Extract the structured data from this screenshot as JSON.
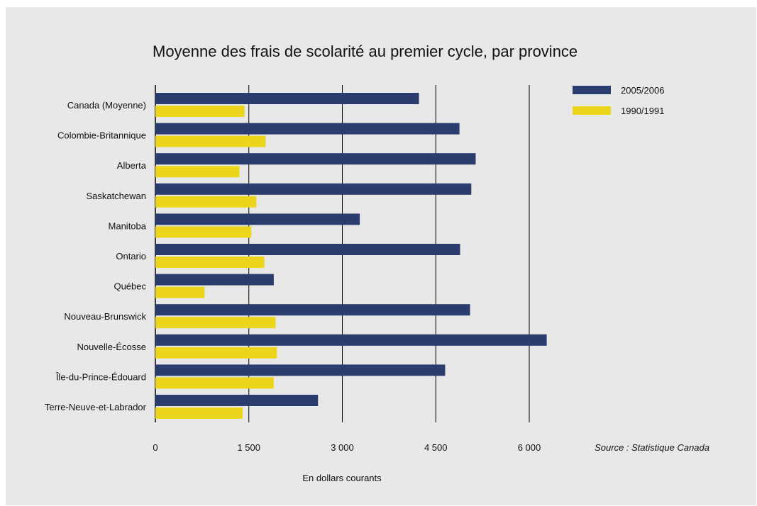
{
  "chart_data": {
    "type": "bar",
    "orientation": "horizontal",
    "title": "Moyenne des frais de scolarité au premier cycle, par province",
    "xlabel": "En dollars courants",
    "ylabel": "",
    "source": "Source : Statistique Canada",
    "xlim": [
      0,
      6000
    ],
    "xticks": [
      0,
      1500,
      3000,
      4500,
      6000
    ],
    "xtick_labels": [
      "0",
      "1 500",
      "3 000",
      "4 500",
      "6 000"
    ],
    "grid": "vertical",
    "legend_position": "top-right",
    "categories": [
      "Canada (Moyenne)",
      "Colombie-Britannique",
      "Alberta",
      "Saskatchewan",
      "Manitoba",
      "Ontario",
      "Québec",
      "Nouveau-Brunswick",
      "Nouvelle-Écosse",
      "Île-du-Prince-Édouard",
      "Terre-Neuve-et-Labrador"
    ],
    "series": [
      {
        "name": "2005/2006",
        "color": "#2b3d6e",
        "values": [
          4230,
          4880,
          5140,
          5070,
          3280,
          4890,
          1900,
          5050,
          6280,
          4650,
          2610
        ]
      },
      {
        "name": "1990/1991",
        "color": "#ecd51d",
        "values": [
          1430,
          1770,
          1350,
          1620,
          1540,
          1750,
          790,
          1930,
          1950,
          1900,
          1400
        ]
      }
    ]
  }
}
